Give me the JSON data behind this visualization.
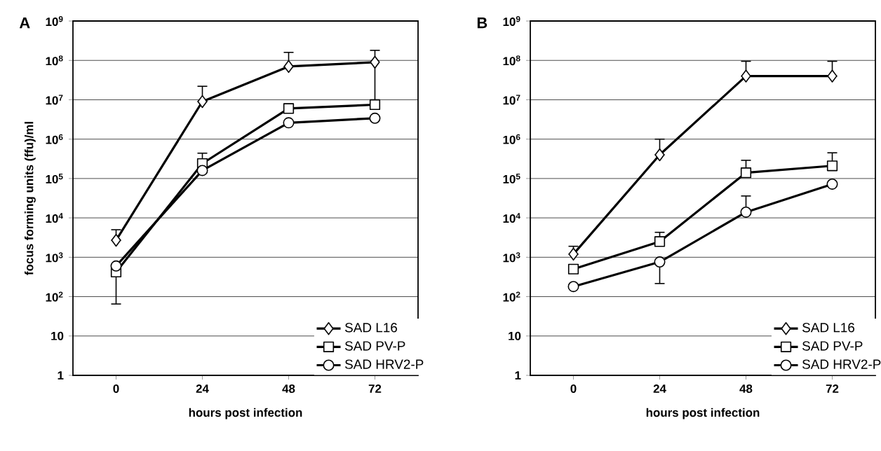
{
  "chart_data": [
    {
      "type": "line",
      "title": "A",
      "xlabel": "hours post infection",
      "ylabel": "focus forming units (ffu)/ml",
      "categories": [
        "0",
        "24",
        "48",
        "72"
      ],
      "log": true,
      "grid": "y",
      "legend": "bottom right",
      "line_style": "solid",
      "ylim": [
        1,
        1000000000
      ],
      "yticks": [
        1,
        10,
        {
          "value": 100,
          "label": "10$^{2}$"
        },
        {
          "value": 1000,
          "label": "10$^{3}$"
        },
        {
          "value": 10000,
          "label": "10$^{4}$"
        },
        {
          "value": 100000,
          "label": "10$^{5}$"
        },
        {
          "value": 1000000,
          "label": "10$^{6}$"
        },
        {
          "value": 10000000,
          "label": "10$^{7}$"
        },
        {
          "value": 100000000,
          "label": "10$^{8}$"
        },
        {
          "value": 1000000000,
          "label": "10$^{9}$"
        }
      ],
      "series": [
        {
          "name": "SAD L16",
          "color": "#000000",
          "marker": "diamond",
          "values": [
            2700,
            9000000,
            70000000,
            90000000
          ],
          "errors": [
            [
              2700,
              5000
            ],
            [
              9000000,
              22000000
            ],
            [
              70000000,
              160000000
            ],
            [
              10000000,
              180000000
            ]
          ]
        },
        {
          "name": "SAD PV-P",
          "color": "#000000",
          "marker": "square",
          "values": [
            420,
            240000,
            6000000,
            7500000
          ],
          "errors": [
            [
              65,
              420
            ],
            [
              240000,
              440000
            ],
            null,
            null
          ]
        },
        {
          "name": "SAD HRV2-P",
          "color": "#000000",
          "marker": "circle",
          "values": [
            600,
            160000,
            2600000,
            3400000
          ]
        }
      ]
    },
    {
      "type": "line",
      "title": "B",
      "xlabel": "hours post infection",
      "categories": [
        "0",
        "24",
        "48",
        "72"
      ],
      "log": true,
      "grid": "y",
      "legend": "bottom right",
      "line_style": "solid",
      "ylim": [
        1,
        1000000000
      ],
      "yticks": [
        1,
        10,
        {
          "value": 100,
          "label": "10$^{2}$"
        },
        {
          "value": 1000,
          "label": "10$^{3}$"
        },
        {
          "value": 10000,
          "label": "10$^{4}$"
        },
        {
          "value": 100000,
          "label": "10$^{5}$"
        },
        {
          "value": 1000000,
          "label": "10$^{6}$"
        },
        {
          "value": 10000000,
          "label": "10$^{7}$"
        },
        {
          "value": 100000000,
          "label": "10$^{8}$"
        },
        {
          "value": 1000000000,
          "label": "10$^{9}$"
        }
      ],
      "series": [
        {
          "name": "SAD L16",
          "color": "#000000",
          "marker": "diamond",
          "values": [
            1200,
            400000,
            40000000,
            40000000
          ],
          "errors": [
            [
              1200,
              1900
            ],
            [
              400000,
              1000000
            ],
            [
              40000000,
              95000000
            ],
            [
              40000000,
              95000000
            ]
          ]
        },
        {
          "name": "SAD PV-P",
          "color": "#000000",
          "marker": "square",
          "values": [
            500,
            2500,
            140000,
            210000
          ],
          "errors": [
            null,
            [
              2500,
              4300
            ],
            [
              140000,
              290000
            ],
            [
              210000,
              450000
            ]
          ]
        },
        {
          "name": "SAD HRV2-P",
          "color": "#000000",
          "marker": "circle",
          "values": [
            180,
            760,
            14000,
            72000
          ],
          "errors": [
            null,
            [
              215,
              760
            ],
            [
              14000,
              36000
            ],
            null
          ]
        }
      ]
    }
  ]
}
